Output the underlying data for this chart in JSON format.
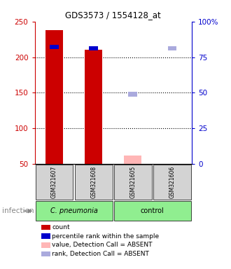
{
  "title": "GDS3573 / 1554128_at",
  "samples": [
    "GSM321607",
    "GSM321608",
    "GSM321605",
    "GSM321606"
  ],
  "left_yaxis": {
    "min": 50,
    "max": 250,
    "ticks": [
      50,
      100,
      150,
      200,
      250
    ],
    "color": "#cc0000"
  },
  "right_yaxis": {
    "min": 0,
    "max": 100,
    "ticks": [
      0,
      25,
      50,
      75,
      100
    ],
    "color": "#0000cc",
    "ticklabels": [
      "0",
      "25",
      "50",
      "75",
      "100%"
    ]
  },
  "count_values": [
    238,
    210,
    62,
    50
  ],
  "count_colors": [
    "#cc0000",
    "#cc0000",
    "#ffb6b6",
    "#ffb6b6"
  ],
  "rank_pct": [
    82,
    81,
    49,
    81
  ],
  "rank_colors": [
    "#0000cc",
    "#0000cc",
    "#aaaadd",
    "#aaaadd"
  ],
  "rank_absent": [
    false,
    false,
    true,
    true
  ],
  "count_absent": [
    false,
    false,
    true,
    true
  ],
  "infection_label": "infection",
  "legend_items": [
    {
      "color": "#cc0000",
      "label": "count"
    },
    {
      "color": "#0000cc",
      "label": "percentile rank within the sample"
    },
    {
      "color": "#ffb6b6",
      "label": "value, Detection Call = ABSENT"
    },
    {
      "color": "#aaaadd",
      "label": "rank, Detection Call = ABSENT"
    }
  ]
}
